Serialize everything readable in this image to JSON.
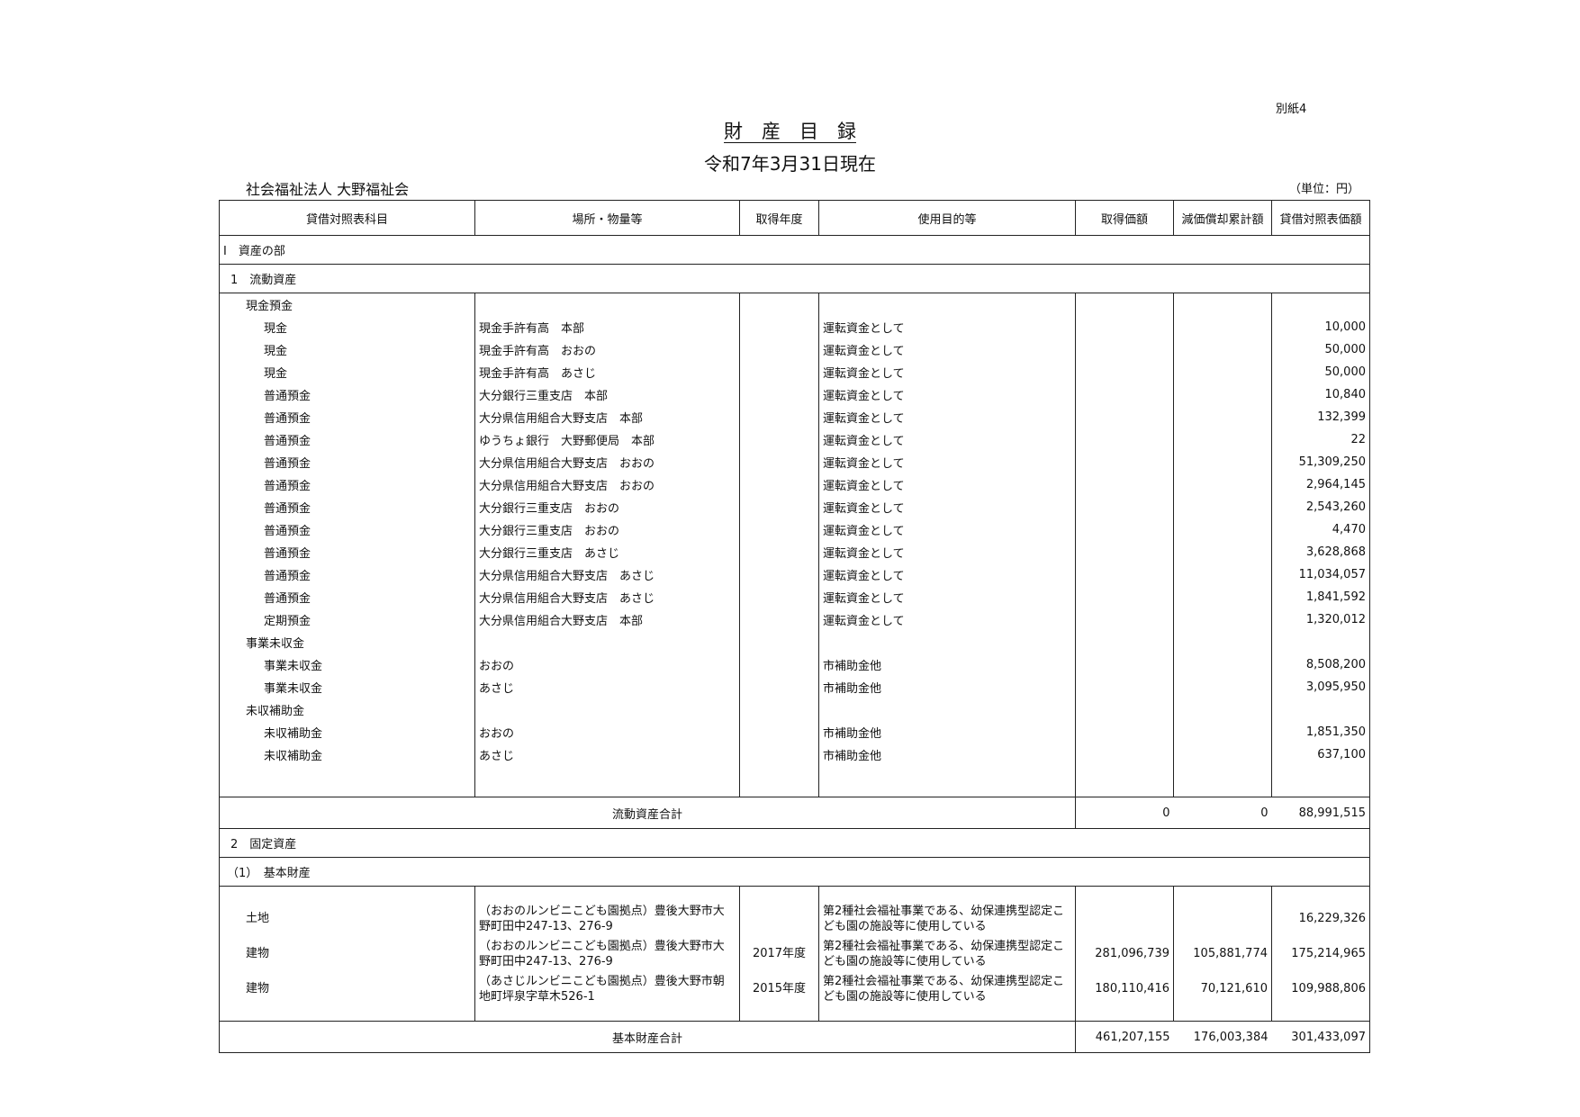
{
  "header": {
    "note": "別紙4",
    "title": "財　産　目　録",
    "date": "令和7年3月31日現在",
    "organization": "社会福祉法人 大野福祉会",
    "unit": "（単位：円）"
  },
  "table": {
    "columns": [
      "貸借対照表科目",
      "場所・物量等",
      "取得年度",
      "使用目的等",
      "取得価額",
      "減価償却累計額",
      "貸借対照表価額"
    ],
    "section": "Ⅰ　資産の部",
    "current": {
      "title": "1　流動資産",
      "groups": [
        {
          "name": "現金預金",
          "items": [
            {
              "subject": "現金",
              "place": "現金手許有高　本部",
              "purpose": "運転資金として",
              "book": "10,000"
            },
            {
              "subject": "現金",
              "place": "現金手許有高　おおの",
              "purpose": "運転資金として",
              "book": "50,000"
            },
            {
              "subject": "現金",
              "place": "現金手許有高　あさじ",
              "purpose": "運転資金として",
              "book": "50,000"
            },
            {
              "subject": "普通預金",
              "place": "大分銀行三重支店　本部",
              "purpose": "運転資金として",
              "book": "10,840"
            },
            {
              "subject": "普通預金",
              "place": "大分県信用組合大野支店　本部",
              "purpose": "運転資金として",
              "book": "132,399"
            },
            {
              "subject": "普通預金",
              "place": "ゆうちょ銀行　大野郵便局　本部",
              "purpose": "運転資金として",
              "book": "22"
            },
            {
              "subject": "普通預金",
              "place": "大分県信用組合大野支店　おおの",
              "purpose": "運転資金として",
              "book": "51,309,250"
            },
            {
              "subject": "普通預金",
              "place": "大分県信用組合大野支店　おおの",
              "purpose": "運転資金として",
              "book": "2,964,145"
            },
            {
              "subject": "普通預金",
              "place": "大分銀行三重支店　おおの",
              "purpose": "運転資金として",
              "book": "2,543,260"
            },
            {
              "subject": "普通預金",
              "place": "大分銀行三重支店　おおの",
              "purpose": "運転資金として",
              "book": "4,470"
            },
            {
              "subject": "普通預金",
              "place": "大分銀行三重支店　あさじ",
              "purpose": "運転資金として",
              "book": "3,628,868"
            },
            {
              "subject": "普通預金",
              "place": "大分県信用組合大野支店　あさじ",
              "purpose": "運転資金として",
              "book": "11,034,057"
            },
            {
              "subject": "普通預金",
              "place": "大分県信用組合大野支店　あさじ",
              "purpose": "運転資金として",
              "book": "1,841,592"
            },
            {
              "subject": "定期預金",
              "place": "大分県信用組合大野支店　本部",
              "purpose": "運転資金として",
              "book": "1,320,012"
            }
          ]
        },
        {
          "name": "事業未収金",
          "items": [
            {
              "subject": "事業未収金",
              "place": "おおの",
              "purpose": "市補助金他",
              "book": "8,508,200"
            },
            {
              "subject": "事業未収金",
              "place": "あさじ",
              "purpose": "市補助金他",
              "book": "3,095,950"
            }
          ]
        },
        {
          "name": "未収補助金",
          "items": [
            {
              "subject": "未収補助金",
              "place": "おおの",
              "purpose": "市補助金他",
              "book": "1,851,350"
            },
            {
              "subject": "未収補助金",
              "place": "あさじ",
              "purpose": "市補助金他",
              "book": "637,100"
            }
          ]
        }
      ],
      "total": {
        "label": "流動資産合計",
        "acquisition": "0",
        "depreciation": "0",
        "book": "88,991,515"
      }
    },
    "fixed": {
      "title": "2　固定資産",
      "basic": {
        "title": "（1）　基本財産",
        "items": [
          {
            "subject": "土地",
            "place": "（おおのルンビニこども園拠点）豊後大野市大野町田中247-13、276-9",
            "purpose": "第2種社会福祉事業である、幼保連携型認定こども園の施設等に使用している",
            "book": "16,229,326"
          },
          {
            "subject": "建物",
            "place": "（おおのルンビニこども園拠点）豊後大野市大野町田中247-13、276-9",
            "year": "2017年度",
            "purpose": "第2種社会福祉事業である、幼保連携型認定こども園の施設等に使用している",
            "acquisition": "281,096,739",
            "depreciation": "105,881,774",
            "book": "175,214,965"
          },
          {
            "subject": "建物",
            "place": "（あさじルンビニこども園拠点）豊後大野市朝地町坪泉字草木526-1",
            "year": "2015年度",
            "purpose": "第2種社会福祉事業である、幼保連携型認定こども園の施設等に使用している",
            "acquisition": "180,110,416",
            "depreciation": "70,121,610",
            "book": "109,988,806"
          }
        ],
        "total": {
          "label": "基本財産合計",
          "acquisition": "461,207,155",
          "depreciation": "176,003,384",
          "book": "301,433,097"
        }
      }
    }
  }
}
